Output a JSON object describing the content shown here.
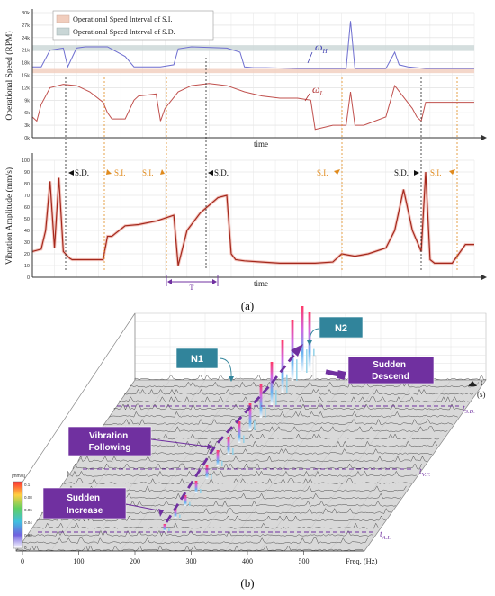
{
  "figure": {
    "panel_a_label": "(a)",
    "panel_b_label": "(b)"
  },
  "chart_data": [
    {
      "type": "line",
      "panel": "a-top",
      "ylabel": "Operational Speed (RPM)",
      "xlabel": "time",
      "ylim": [
        0,
        30000
      ],
      "yticks": [
        "0k",
        "3k",
        "6k",
        "9k",
        "12k",
        "15k",
        "18k",
        "21k",
        "24k",
        "27k",
        "30k"
      ],
      "grid": true,
      "legend": [
        {
          "label": "Operational Speed Interval of S.I.",
          "color": "#f1cdbd"
        },
        {
          "label": "Operational Speed Interval of S.D.",
          "color": "#c9d6d6"
        }
      ],
      "bands": [
        {
          "name": "S.I.",
          "y0": 15500,
          "y1": 16500,
          "color": "#f1cdbd"
        },
        {
          "name": "S.D.",
          "y0": 20800,
          "y1": 22200,
          "color": "#c9d6d6"
        }
      ],
      "series": [
        {
          "name": "ωH",
          "color": "#6f6fd0",
          "x": [
            0,
            2,
            4,
            7,
            8,
            10,
            12,
            17,
            21,
            23,
            29,
            32,
            33,
            36,
            44,
            47,
            48,
            50,
            53,
            60,
            64,
            67,
            69,
            71,
            72,
            73,
            75,
            80,
            82,
            83,
            85,
            89,
            90,
            94,
            97,
            100
          ],
          "y": [
            17000,
            17000,
            21000,
            21500,
            17000,
            21500,
            21800,
            21800,
            19500,
            17000,
            17000,
            17500,
            21300,
            21800,
            21500,
            20500,
            17000,
            16800,
            16800,
            16600,
            16600,
            16600,
            16600,
            16600,
            28000,
            16600,
            16600,
            16600,
            20500,
            17500,
            17000,
            16600,
            16600,
            16600,
            16600,
            16600
          ]
        },
        {
          "name": "ωL",
          "color": "#c0504d",
          "x": [
            0,
            1,
            2,
            4,
            7,
            10,
            13,
            16,
            17,
            18,
            21,
            23,
            24,
            28,
            29,
            30,
            33,
            36,
            40,
            44,
            48,
            52,
            56,
            60,
            63,
            64,
            68,
            71,
            72,
            73,
            75,
            80,
            82,
            86,
            87,
            88,
            89,
            92,
            97,
            100
          ],
          "y": [
            5000,
            4000,
            8000,
            12000,
            12800,
            12500,
            11000,
            8500,
            6000,
            4500,
            4500,
            9000,
            10000,
            10500,
            4000,
            7000,
            11000,
            12500,
            13000,
            12500,
            11000,
            10000,
            9500,
            9500,
            9000,
            2000,
            3000,
            3000,
            11000,
            3000,
            3000,
            5000,
            12500,
            7000,
            5000,
            4000,
            8500,
            8500,
            8500,
            8500
          ]
        }
      ],
      "annotations": [
        "ωH",
        "ωL"
      ]
    },
    {
      "type": "line",
      "panel": "a-bottom",
      "ylabel": "Vibration Amplitude (mm/s)",
      "xlabel": "time",
      "ylim": [
        0,
        100
      ],
      "yticks": [
        "0",
        "10",
        "20",
        "30",
        "40",
        "50",
        "60",
        "70",
        "80",
        "90",
        "100"
      ],
      "grid": true,
      "series": [
        {
          "name": "",
          "color": "#a4281c",
          "x": [
            0,
            2,
            3,
            4,
            5,
            6,
            7,
            8,
            8.5,
            9,
            12,
            16,
            17,
            18,
            21,
            24,
            28,
            32,
            33,
            35,
            38,
            42,
            44,
            45,
            46,
            48,
            52,
            56,
            60,
            64,
            68,
            70,
            73,
            76,
            80,
            82,
            84,
            86,
            88,
            89,
            90,
            91,
            92,
            95,
            98,
            100
          ],
          "y": [
            22,
            24,
            40,
            82,
            25,
            85,
            22,
            18,
            16,
            15,
            15,
            15,
            35,
            35,
            44,
            45,
            48,
            53,
            10,
            40,
            55,
            68,
            70,
            20,
            15,
            14,
            13,
            12,
            12,
            12,
            13,
            20,
            18,
            20,
            25,
            40,
            75,
            40,
            22,
            90,
            15,
            12,
            12,
            12,
            28,
            28
          ]
        }
      ],
      "annotations": [
        "S.D.",
        "S.I.",
        "S.I.",
        "S.D.",
        "S.I.",
        "S.D.",
        "S.I.",
        "T"
      ]
    },
    {
      "type": "waterfall",
      "panel": "b",
      "xlabel": "Freq. (Hz)",
      "xticks": [
        "0",
        "100",
        "200",
        "300",
        "400",
        "500"
      ],
      "time_axis_label": "t",
      "time_axis_unit": "(s)",
      "time_markers": [
        "tA.I.",
        "tV.F.",
        "tS.D."
      ],
      "colorbar_label": "[mm/s]",
      "colorbar_ticks": [
        "0.1",
        "0.08",
        "0.06",
        "0.04",
        "0.02",
        "0"
      ],
      "callouts": [
        "N1",
        "N2",
        "Sudden Descend",
        "Vibration Following",
        "Sudden Increase"
      ]
    }
  ]
}
